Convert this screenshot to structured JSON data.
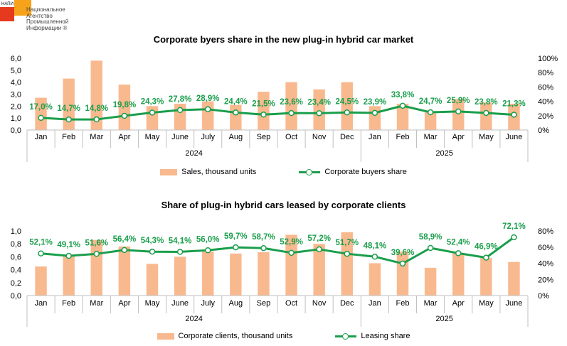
{
  "logo": {
    "abbr": "НАПИ",
    "name_lines": [
      "Национальное",
      "Агентство",
      "Промышленной",
      "Информации ®"
    ]
  },
  "colors": {
    "bar": "#f9b98f",
    "line": "#1a9e4b",
    "grid": "#d9d9d9"
  },
  "chart_data": [
    {
      "type": "bar",
      "title": "Corporate byers share in the new plug-in hybrid car market",
      "categories": [
        "Jan",
        "Feb",
        "Mar",
        "Apr",
        "May",
        "June",
        "July",
        "Aug",
        "Sep",
        "Oct",
        "Nov",
        "Dec",
        "Jan",
        "Feb",
        "Mar",
        "Apr",
        "May",
        "June"
      ],
      "year_groups": [
        {
          "label": "2024",
          "count": 12
        },
        {
          "label": "2025",
          "count": 6
        }
      ],
      "series": [
        {
          "name": "Sales, thousand units",
          "kind": "bar",
          "axis": "left",
          "values": [
            2.7,
            4.3,
            5.8,
            3.8,
            2.0,
            2.2,
            2.4,
            2.1,
            3.2,
            4.0,
            3.4,
            4.0,
            2.0,
            2.2,
            1.5,
            2.6,
            2.3,
            2.2
          ]
        },
        {
          "name": "Corporate buyers share",
          "kind": "line",
          "axis": "right",
          "values": [
            17.0,
            14.7,
            14.8,
            19.8,
            24.3,
            27.8,
            28.9,
            24.4,
            21.5,
            23.6,
            23.4,
            24.5,
            23.9,
            33.8,
            24.7,
            25.9,
            23.8,
            21.3
          ],
          "labels": [
            "17,0%",
            "14,7%",
            "14,8%",
            "19,8%",
            "24,3%",
            "27,8%",
            "28,9%",
            "24,4%",
            "21,5%",
            "23,6%",
            "23,4%",
            "24,5%",
            "23,9%",
            "33,8%",
            "24,7%",
            "25,9%",
            "23,8%",
            "21,3%"
          ]
        }
      ],
      "y_left": {
        "ylim": [
          0,
          6
        ],
        "ticks": [
          "0,0",
          "1,0",
          "2,0",
          "3,0",
          "4,0",
          "5,0",
          "6,0"
        ]
      },
      "y_right": {
        "ylim": [
          0,
          100
        ],
        "ticks": [
          "0%",
          "20%",
          "40%",
          "60%",
          "80%",
          "100%"
        ]
      },
      "legend": "bottom",
      "grid": false
    },
    {
      "type": "bar",
      "title": "Share of plug-in hybrid cars leased by corporate clients",
      "categories": [
        "Jan",
        "Feb",
        "Mar",
        "Apr",
        "May",
        "June",
        "July",
        "Aug",
        "Sep",
        "Oct",
        "Nov",
        "Dec",
        "Jan",
        "Feb",
        "Mar",
        "Apr",
        "May",
        "June"
      ],
      "year_groups": [
        {
          "label": "2024",
          "count": 12
        },
        {
          "label": "2025",
          "count": 6
        }
      ],
      "series": [
        {
          "name": "Corporate clients, thousand units",
          "kind": "bar",
          "axis": "left",
          "values": [
            0.45,
            0.63,
            0.86,
            0.76,
            0.49,
            0.6,
            0.68,
            0.65,
            0.67,
            0.94,
            0.8,
            0.98,
            0.5,
            0.68,
            0.43,
            0.66,
            0.58,
            0.52
          ]
        },
        {
          "name": "Leasing share",
          "kind": "line",
          "axis": "right",
          "values": [
            52.1,
            49.1,
            51.6,
            56.4,
            54.3,
            54.1,
            56.0,
            59.7,
            58.7,
            52.9,
            57.2,
            51.7,
            48.1,
            39.6,
            58.9,
            52.4,
            46.9,
            72.1
          ],
          "labels": [
            "52,1%",
            "49,1%",
            "51,6%",
            "56,4%",
            "54,3%",
            "54,1%",
            "56,0%",
            "59,7%",
            "58,7%",
            "52,9%",
            "57,2%",
            "51,7%",
            "48,1%",
            "39,6%",
            "58,9%",
            "52,4%",
            "46,9%",
            "72,1%"
          ]
        }
      ],
      "y_left": {
        "ylim": [
          0,
          1
        ],
        "ticks": [
          "0,0",
          "0,2",
          "0,4",
          "0,6",
          "0,8",
          "1,0"
        ]
      },
      "y_right": {
        "ylim": [
          0,
          80
        ],
        "ticks": [
          "0%",
          "20%",
          "40%",
          "60%",
          "80%"
        ]
      },
      "legend": "bottom",
      "grid": false
    }
  ]
}
